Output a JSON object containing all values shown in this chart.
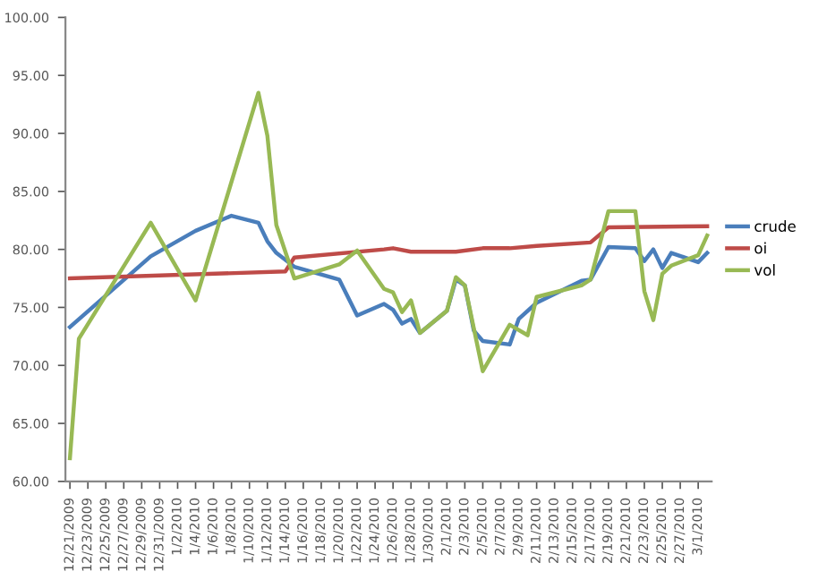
{
  "chart_data": {
    "type": "line",
    "legend": "right",
    "grid": false,
    "marker": "none",
    "line_style": "solid",
    "xlim": [
      "2009-12-20T12:00",
      "2010-03-02T12:00"
    ],
    "xticks": [
      {
        "value": "2009-12-21",
        "label": "12/21/2009"
      },
      {
        "value": "2009-12-23",
        "label": "12/23/2009"
      },
      {
        "value": "2009-12-25",
        "label": "12/25/2009"
      },
      {
        "value": "2009-12-27",
        "label": "12/27/2009"
      },
      {
        "value": "2009-12-29",
        "label": "12/29/2009"
      },
      {
        "value": "2009-12-31",
        "label": "12/31/2009"
      },
      {
        "value": "2010-01-02",
        "label": "1/2/2010"
      },
      {
        "value": "2010-01-04",
        "label": "1/4/2010"
      },
      {
        "value": "2010-01-06",
        "label": "1/6/2010"
      },
      {
        "value": "2010-01-08",
        "label": "1/8/2010"
      },
      {
        "value": "2010-01-10",
        "label": "1/10/2010"
      },
      {
        "value": "2010-01-12",
        "label": "1/12/2010"
      },
      {
        "value": "2010-01-14",
        "label": "1/14/2010"
      },
      {
        "value": "2010-01-16",
        "label": "1/16/2010"
      },
      {
        "value": "2010-01-18",
        "label": "1/18/2010"
      },
      {
        "value": "2010-01-20",
        "label": "1/20/2010"
      },
      {
        "value": "2010-01-22",
        "label": "1/22/2010"
      },
      {
        "value": "2010-01-24",
        "label": "1/24/2010"
      },
      {
        "value": "2010-01-26",
        "label": "1/26/2010"
      },
      {
        "value": "2010-01-28",
        "label": "1/28/2010"
      },
      {
        "value": "2010-01-30",
        "label": "1/30/2010"
      },
      {
        "value": "2010-02-01",
        "label": "2/1/2010"
      },
      {
        "value": "2010-02-03",
        "label": "2/3/2010"
      },
      {
        "value": "2010-02-05",
        "label": "2/5/2010"
      },
      {
        "value": "2010-02-07",
        "label": "2/7/2010"
      },
      {
        "value": "2010-02-09",
        "label": "2/9/2010"
      },
      {
        "value": "2010-02-11",
        "label": "2/11/2010"
      },
      {
        "value": "2010-02-13",
        "label": "2/13/2010"
      },
      {
        "value": "2010-02-15",
        "label": "2/15/2010"
      },
      {
        "value": "2010-02-17",
        "label": "2/17/2010"
      },
      {
        "value": "2010-02-19",
        "label": "2/19/2010"
      },
      {
        "value": "2010-02-21",
        "label": "2/21/2010"
      },
      {
        "value": "2010-02-23",
        "label": "2/23/2010"
      },
      {
        "value": "2010-02-25",
        "label": "2/25/2010"
      },
      {
        "value": "2010-02-27",
        "label": "2/27/2010"
      },
      {
        "value": "2010-03-01",
        "label": "3/1/2010"
      }
    ],
    "ylim": [
      60,
      100
    ],
    "yticks": [
      {
        "value": 60,
        "label": "60.00"
      },
      {
        "value": 65,
        "label": "65.00"
      },
      {
        "value": 70,
        "label": "70.00"
      },
      {
        "value": 75,
        "label": "75.00"
      },
      {
        "value": 80,
        "label": "80.00"
      },
      {
        "value": 85,
        "label": "85.00"
      },
      {
        "value": 90,
        "label": "90.00"
      },
      {
        "value": 95,
        "label": "95.00"
      },
      {
        "value": 100,
        "label": "100.00"
      }
    ],
    "series": [
      {
        "name": "crude",
        "color": "#4a7ebb",
        "x": [
          "2009-12-21",
          "2009-12-30",
          "2010-01-04",
          "2010-01-08",
          "2010-01-11",
          "2010-01-12",
          "2010-01-13",
          "2010-01-15",
          "2010-01-20",
          "2010-01-22",
          "2010-01-25",
          "2010-01-26",
          "2010-01-27",
          "2010-01-28",
          "2010-01-29",
          "2010-02-01",
          "2010-02-02",
          "2010-02-03",
          "2010-02-04",
          "2010-02-05",
          "2010-02-08",
          "2010-02-09",
          "2010-02-11",
          "2010-02-16",
          "2010-02-17",
          "2010-02-19",
          "2010-02-22",
          "2010-02-23",
          "2010-02-24",
          "2010-02-25",
          "2010-02-26",
          "2010-03-01",
          "2010-03-02"
        ],
        "values": [
          73.3,
          79.4,
          81.6,
          82.9,
          82.3,
          80.7,
          79.7,
          78.5,
          77.4,
          74.3,
          75.3,
          74.8,
          73.6,
          74.0,
          72.8,
          74.7,
          77.4,
          76.9,
          73.0,
          72.1,
          71.8,
          74.0,
          75.4,
          77.3,
          77.4,
          80.2,
          80.1,
          79.0,
          80.0,
          78.4,
          79.7,
          78.9,
          79.7
        ]
      },
      {
        "name": "oi",
        "color": "#be4b48",
        "x": [
          "2009-12-21",
          "2010-01-14",
          "2010-01-15",
          "2010-01-25",
          "2010-01-26",
          "2010-01-28",
          "2010-02-02",
          "2010-02-05",
          "2010-02-08",
          "2010-02-11",
          "2010-02-17",
          "2010-02-19",
          "2010-03-02"
        ],
        "values": [
          77.5,
          78.1,
          79.3,
          80.0,
          80.1,
          79.8,
          79.8,
          80.1,
          80.1,
          80.3,
          80.6,
          81.9,
          82.0
        ]
      },
      {
        "name": "vol",
        "color": "#98b954",
        "x": [
          "2009-12-21",
          "2009-12-22",
          "2009-12-30",
          "2010-01-04",
          "2010-01-11",
          "2010-01-12",
          "2010-01-13",
          "2010-01-15",
          "2010-01-20",
          "2010-01-22",
          "2010-01-25",
          "2010-01-26",
          "2010-01-27",
          "2010-01-28",
          "2010-01-29",
          "2010-02-01",
          "2010-02-02",
          "2010-02-03",
          "2010-02-05",
          "2010-02-08",
          "2010-02-10",
          "2010-02-11",
          "2010-02-16",
          "2010-02-17",
          "2010-02-19",
          "2010-02-22",
          "2010-02-23",
          "2010-02-24",
          "2010-02-25",
          "2010-02-26",
          "2010-03-01",
          "2010-03-02"
        ],
        "values": [
          62.0,
          72.3,
          82.3,
          75.6,
          93.5,
          89.8,
          82.1,
          77.5,
          78.7,
          79.9,
          76.6,
          76.3,
          74.6,
          75.6,
          72.8,
          74.7,
          77.6,
          76.9,
          69.5,
          73.5,
          72.6,
          75.9,
          76.9,
          77.4,
          83.3,
          83.3,
          76.4,
          73.9,
          77.9,
          78.6,
          79.5,
          81.2
        ]
      }
    ]
  }
}
